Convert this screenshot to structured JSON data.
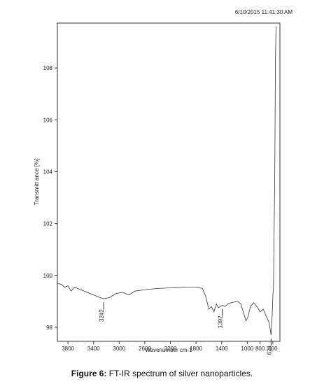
{
  "chart_data": {
    "type": "line",
    "timestamp": "6/10/2015 11:41:30 AM",
    "xlabel": "Wavenumber cm-1",
    "ylabel": "Transmitt ance [%]",
    "xlim": [
      3965,
      490
    ],
    "ylim": [
      97.46,
      109.73
    ],
    "xticks": [
      3800,
      3400,
      3000,
      2600,
      2200,
      1800,
      1400,
      1000,
      800,
      600
    ],
    "yticks": [
      98,
      100,
      102,
      104,
      106,
      108
    ],
    "color": "#333333",
    "x": [
      3965,
      3900,
      3850,
      3800,
      3750,
      3700,
      3650,
      3600,
      3500,
      3400,
      3300,
      3242,
      3150,
      3050,
      2950,
      2850,
      2750,
      2600,
      2400,
      2200,
      2000,
      1800,
      1700,
      1650,
      1600,
      1560,
      1520,
      1480,
      1450,
      1392,
      1350,
      1300,
      1250,
      1150,
      1100,
      1050,
      1020,
      990,
      950,
      900,
      850,
      800,
      750,
      700,
      660,
      640,
      628,
      610,
      600,
      590,
      570,
      560,
      550
    ],
    "values": [
      99.7,
      99.65,
      99.55,
      99.6,
      99.4,
      99.55,
      99.5,
      99.45,
      99.35,
      99.25,
      99.15,
      99.1,
      99.15,
      99.3,
      99.35,
      99.25,
      99.4,
      99.45,
      99.5,
      99.52,
      99.55,
      99.55,
      99.5,
      99.2,
      98.7,
      98.8,
      98.6,
      98.9,
      98.75,
      98.85,
      98.8,
      98.9,
      98.95,
      99.0,
      98.9,
      98.5,
      98.25,
      98.4,
      98.8,
      98.95,
      98.8,
      98.6,
      98.7,
      98.4,
      98.2,
      97.9,
      97.7,
      98.5,
      99.2,
      99.6,
      104.0,
      108.3,
      109.6
    ],
    "peak_labels": [
      3242,
      1392,
      628
    ],
    "peak_values": [
      99.1,
      98.85,
      97.7
    ]
  },
  "caption": {
    "label": "Figure 6:",
    "text": "FT-IR spectrum of silver nanoparticles."
  }
}
